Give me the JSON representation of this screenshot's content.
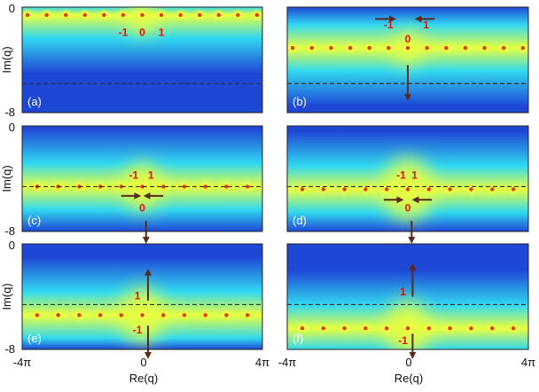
{
  "colors": {
    "jet_low": "#1f47d6",
    "jet_mid": "#30d8f0",
    "jet_high": "#e9ff40",
    "peak": "#e23a12",
    "dashed_line": "#333333",
    "arrow": "#5a2b1c",
    "order_label": "#e3120b",
    "panel_tag": "#ffffff"
  },
  "chart_data": [
    {
      "type": "heatmap",
      "panel": "(a)",
      "ylabel": "Im(q)",
      "xlabel": "",
      "y_ticks": [
        "0",
        "-8"
      ],
      "x_ticks": [],
      "xlim": [
        -12.566,
        12.566
      ],
      "ylim": [
        -8,
        0
      ],
      "dashed_line_y": -5.8,
      "maxima": {
        "y": -0.6,
        "spacing": 2.0,
        "center_intensity": 1.0
      },
      "order_labels": [
        {
          "text": "-1",
          "x": -2.0,
          "y": -2.2
        },
        {
          "text": "0",
          "x": 0.0,
          "y": -2.2
        },
        {
          "text": "1",
          "x": 2.0,
          "y": -2.2
        }
      ],
      "arrows": []
    },
    {
      "type": "heatmap",
      "panel": "(b)",
      "ylabel": "",
      "xlabel": "",
      "y_ticks": [],
      "x_ticks": [],
      "xlim": [
        -12.566,
        12.566
      ],
      "ylim": [
        -8,
        0
      ],
      "dashed_line_y": -5.8,
      "maxima": {
        "y": -3.1,
        "spacing": 2.0,
        "center_intensity": 0.9
      },
      "order_labels": [
        {
          "text": "-1",
          "x": -2.0,
          "y": -1.6
        },
        {
          "text": "0",
          "x": 0.0,
          "y": -2.7
        },
        {
          "text": "1",
          "x": 1.9,
          "y": -1.6
        }
      ],
      "arrows": [
        {
          "x1": -3.4,
          "y1": -0.9,
          "x2": -1.4,
          "y2": -0.9
        },
        {
          "x1": 2.8,
          "y1": -0.9,
          "x2": 0.9,
          "y2": -0.9
        },
        {
          "x1": 0.0,
          "y1": -4.4,
          "x2": 0.0,
          "y2": -7.0
        }
      ]
    },
    {
      "type": "heatmap",
      "panel": "(c)",
      "ylabel": "Im(q)",
      "xlabel": "",
      "y_ticks": [
        "0",
        "-8"
      ],
      "x_ticks": [],
      "xlim": [
        -12.566,
        12.566
      ],
      "ylim": [
        -8,
        0
      ],
      "dashed_line_y": -4.6,
      "maxima": {
        "y": -4.6,
        "spacing": 2.2,
        "center_intensity": 1.2
      },
      "order_labels": [
        {
          "text": "-1",
          "x": -0.9,
          "y": -4.0
        },
        {
          "text": "1",
          "x": 0.9,
          "y": -4.0
        },
        {
          "text": "0",
          "x": 0.0,
          "y": -6.5
        }
      ],
      "arrows": [
        {
          "x1": -2.2,
          "y1": -5.3,
          "x2": -0.3,
          "y2": -5.3
        },
        {
          "x1": 2.2,
          "y1": -5.3,
          "x2": 0.3,
          "y2": -5.3
        },
        {
          "x1": 0.4,
          "y1": -7.2,
          "x2": 0.4,
          "y2": -8.8
        }
      ]
    },
    {
      "type": "heatmap",
      "panel": "(d)",
      "ylabel": "",
      "xlabel": "",
      "y_ticks": [],
      "x_ticks": [],
      "xlim": [
        -12.566,
        12.566
      ],
      "ylim": [
        -8,
        0
      ],
      "dashed_line_y": -4.6,
      "maxima": {
        "y": -4.8,
        "spacing": 2.2,
        "center_intensity": 1.6
      },
      "order_labels": [
        {
          "text": "-1",
          "x": -0.7,
          "y": -4.0
        },
        {
          "text": "1",
          "x": 0.7,
          "y": -4.0
        },
        {
          "text": "0",
          "x": 0.0,
          "y": -6.5
        }
      ],
      "arrows": [
        {
          "x1": -2.5,
          "y1": -5.6,
          "x2": -0.6,
          "y2": -5.6
        },
        {
          "x1": 2.5,
          "y1": -5.6,
          "x2": 0.6,
          "y2": -5.6
        },
        {
          "x1": 0.4,
          "y1": -7.2,
          "x2": 0.4,
          "y2": -8.8
        }
      ]
    },
    {
      "type": "heatmap",
      "panel": "(e)",
      "ylabel": "Im(q)",
      "xlabel": "",
      "y_ticks": [
        "0",
        "-8"
      ],
      "x_ticks": [],
      "xlim": [
        -12.566,
        12.566
      ],
      "ylim": [
        -8,
        0
      ],
      "dashed_line_y": -4.6,
      "maxima": {
        "y": -5.4,
        "spacing": 2.2,
        "center_intensity": 1.4
      },
      "order_labels": [
        {
          "text": "1",
          "x": -0.5,
          "y": -4.2
        },
        {
          "text": "-1",
          "x": -0.5,
          "y": -6.8
        }
      ],
      "arrows": [
        {
          "x1": 0.6,
          "y1": -4.3,
          "x2": 0.6,
          "y2": -2.0
        },
        {
          "x1": 0.6,
          "y1": -6.2,
          "x2": 0.6,
          "y2": -8.6
        }
      ]
    },
    {
      "type": "heatmap",
      "panel": "(f)",
      "ylabel": "",
      "xlabel": "",
      "y_ticks": [],
      "x_ticks": [],
      "xlim": [
        -12.566,
        12.566
      ],
      "ylim": [
        -8,
        0
      ],
      "dashed_line_y": -4.6,
      "maxima": {
        "y": -6.4,
        "spacing": 2.2,
        "center_intensity": 1.4
      },
      "order_labels": [
        {
          "text": "1",
          "x": -0.5,
          "y": -3.9
        },
        {
          "text": "-1",
          "x": -0.5,
          "y": -7.6
        }
      ],
      "arrows": [
        {
          "x1": 0.5,
          "y1": -4.0,
          "x2": 0.5,
          "y2": -1.6
        },
        {
          "x1": 0.5,
          "y1": -6.8,
          "x2": 0.5,
          "y2": -8.6
        }
      ]
    }
  ],
  "axes": {
    "x_tick_left": "-4π",
    "x_tick_center": "0",
    "x_tick_right": "4π",
    "xlabel": "Re(q)"
  }
}
